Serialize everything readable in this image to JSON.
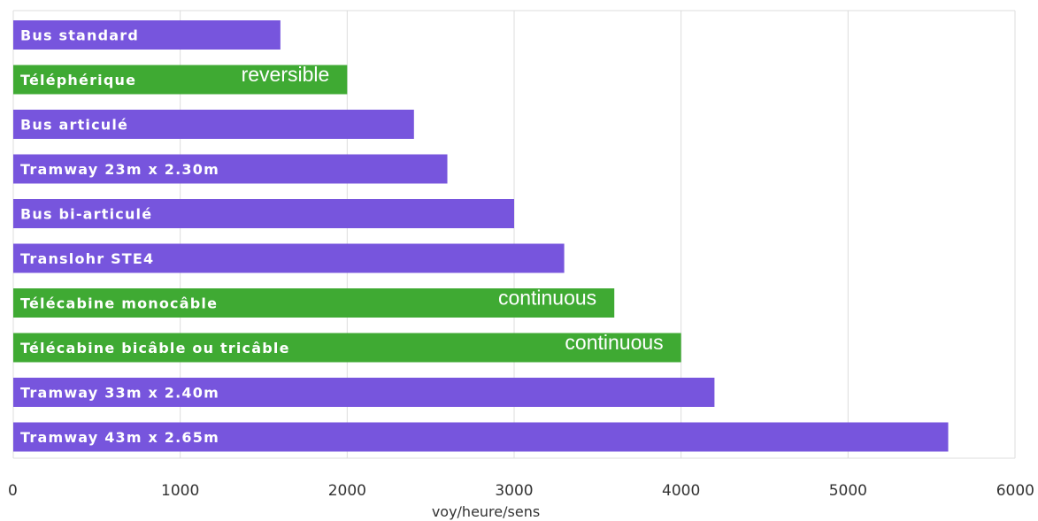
{
  "chart_data": {
    "type": "bar",
    "orientation": "horizontal",
    "xlabel": "voy/heure/sens",
    "xlim": [
      0,
      6000
    ],
    "xticks": [
      0,
      1000,
      2000,
      3000,
      4000,
      5000,
      6000
    ],
    "grid": true,
    "colors": {
      "bus_tram": "#7755dd",
      "cable": "#3faa33"
    },
    "bars": [
      {
        "label": "Bus standard",
        "value": 1600,
        "color": "#7755dd",
        "note": ""
      },
      {
        "label": "Téléphérique",
        "value": 2000,
        "color": "#3faa33",
        "note": "reversible"
      },
      {
        "label": "Bus articulé",
        "value": 2400,
        "color": "#7755dd",
        "note": ""
      },
      {
        "label": "Tramway 23m x 2.30m",
        "value": 2600,
        "color": "#7755dd",
        "note": ""
      },
      {
        "label": "Bus bi-articulé",
        "value": 3000,
        "color": "#7755dd",
        "note": ""
      },
      {
        "label": "Translohr STE4",
        "value": 3300,
        "color": "#7755dd",
        "note": ""
      },
      {
        "label": "Télécabine monocâble",
        "value": 3600,
        "color": "#3faa33",
        "note": "continuous"
      },
      {
        "label": "Télécabine bicâble ou tricâble",
        "value": 4000,
        "color": "#3faa33",
        "note": "continuous"
      },
      {
        "label": "Tramway 33m x 2.40m",
        "value": 4200,
        "color": "#7755dd",
        "note": ""
      },
      {
        "label": "Tramway 43m x 2.65m",
        "value": 5600,
        "color": "#7755dd",
        "note": ""
      }
    ]
  }
}
